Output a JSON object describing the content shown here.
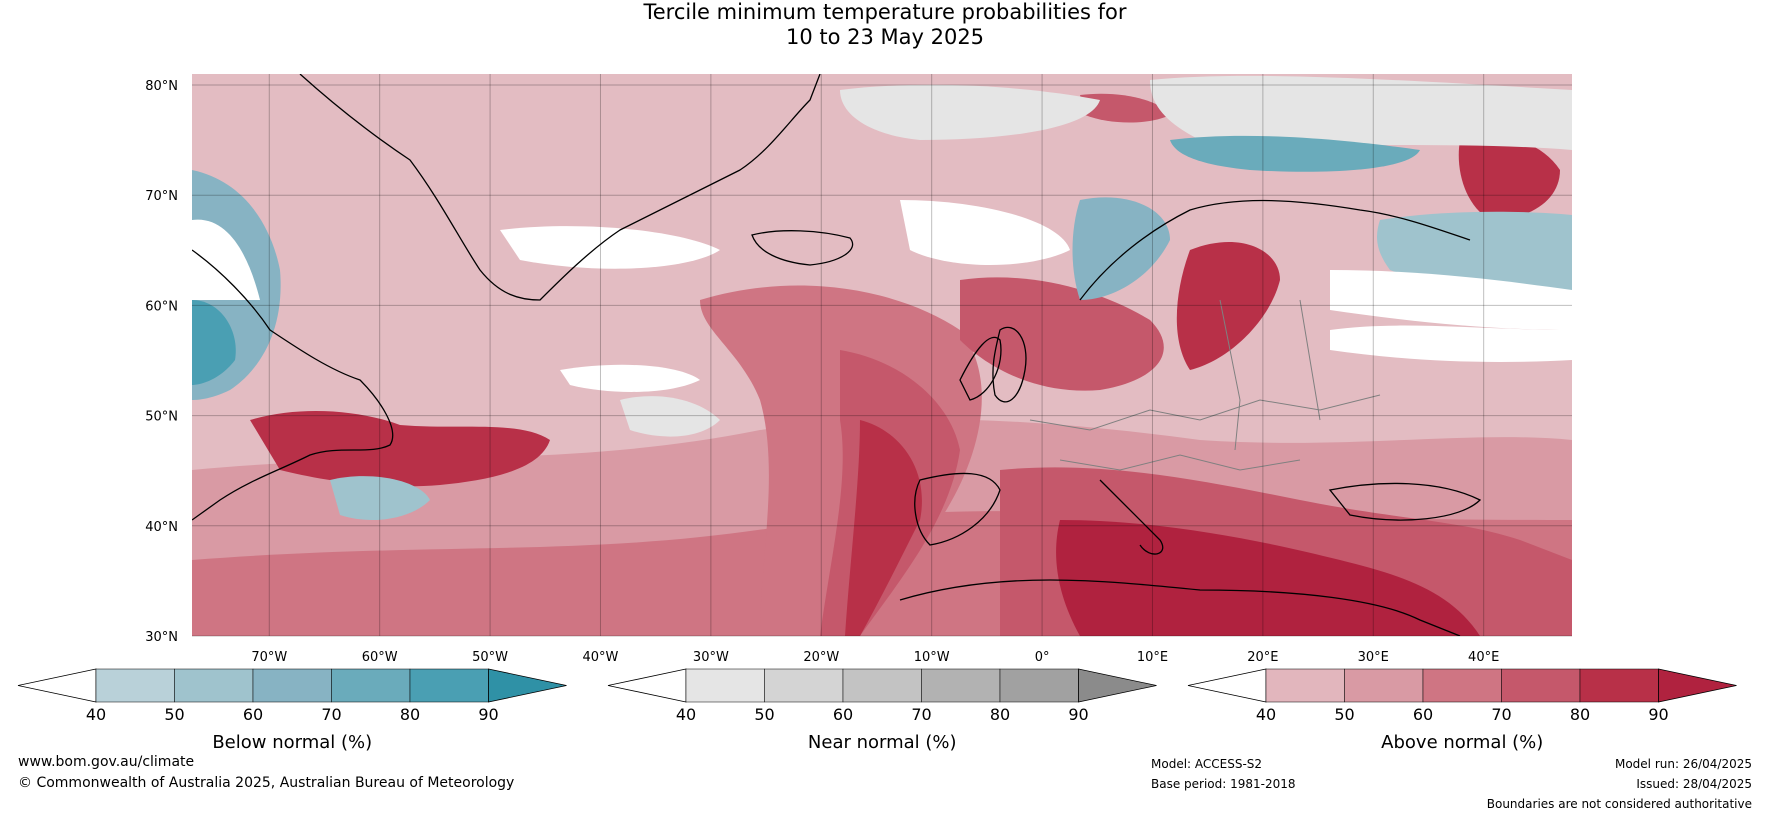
{
  "title": {
    "line1": "Tercile minimum temperature probabilities for",
    "line2": "10 to 23 May 2025"
  },
  "map": {
    "lat_labels": [
      "80°N",
      "70°N",
      "60°N",
      "50°N",
      "40°N",
      "30°N"
    ],
    "lon_labels": [
      "70°W",
      "60°W",
      "50°W",
      "40°W",
      "30°W",
      "20°W",
      "10°W",
      "0°",
      "10°E",
      "20°E",
      "30°E",
      "40°E"
    ],
    "lat_range": [
      30,
      81
    ],
    "lon_range": [
      -77,
      48
    ]
  },
  "legends": [
    {
      "id": "below",
      "label": "Below normal (%)",
      "ticks": [
        "40",
        "50",
        "60",
        "70",
        "80",
        "90"
      ],
      "colors": [
        "#b9d1d9",
        "#9fc3cd",
        "#87b3c3",
        "#6aabbb",
        "#4a9fb3",
        "#2f91a6"
      ]
    },
    {
      "id": "near",
      "label": "Near normal (%)",
      "ticks": [
        "40",
        "50",
        "60",
        "70",
        "80",
        "90"
      ],
      "colors": [
        "#e5e5e5",
        "#d4d4d4",
        "#c3c3c3",
        "#b2b2b2",
        "#a1a1a1",
        "#8b8b8b"
      ]
    },
    {
      "id": "above",
      "label": "Above normal (%)",
      "ticks": [
        "40",
        "50",
        "60",
        "70",
        "80",
        "90"
      ],
      "colors": [
        "#e2b6bd",
        "#d99aa4",
        "#cf7583",
        "#c5586b",
        "#b83048",
        "#b0223f"
      ]
    }
  ],
  "footer": {
    "website": "www.bom.gov.au/climate",
    "copyright": "© Commonwealth of Australia 2025, Australian Bureau of Meteorology",
    "model": "Model: ACCESS-S2",
    "base_period": "Base period: 1981-2018",
    "model_run": "Model run: 26/04/2025",
    "issued": "Issued: 28/04/2025",
    "disclaimer": "Boundaries are not considered authoritative"
  }
}
